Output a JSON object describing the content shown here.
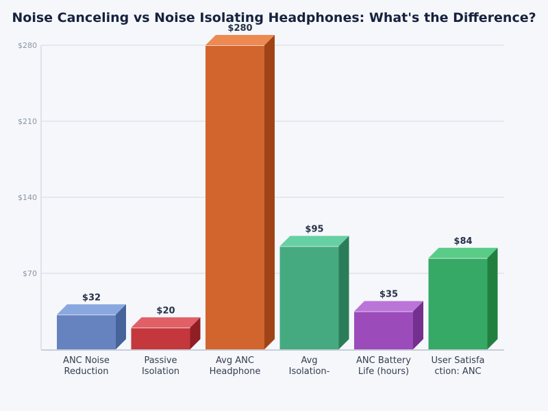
{
  "chart_data": {
    "type": "bar",
    "title": "Noise Canceling vs Noise Isolating Headphones: What's the Difference?",
    "categories": [
      [
        "ANC Noise",
        "Reduction"
      ],
      [
        "Passive",
        "Isolation"
      ],
      [
        "Avg ANC",
        "Headphone"
      ],
      [
        "Avg",
        "Isolation-"
      ],
      [
        "ANC Battery",
        "Life (hours)"
      ],
      [
        "User Satisfa",
        "ction: ANC"
      ]
    ],
    "values": [
      32,
      20,
      280,
      95,
      35,
      84
    ],
    "value_labels": [
      "$32",
      "$20",
      "$280",
      "$95",
      "$35",
      "$84"
    ],
    "ylim": [
      0,
      280
    ],
    "yticks": [
      70,
      140,
      210,
      280
    ],
    "ytick_labels": [
      "$70",
      "$140",
      "$210",
      "$280"
    ],
    "grid": true,
    "style": "3d-bar",
    "colors": [
      {
        "front": "#6683c0",
        "top": "#8aa8e0",
        "side": "#46639a"
      },
      {
        "front": "#c4373d",
        "top": "#e06066",
        "side": "#8f1f24"
      },
      {
        "front": "#d2652d",
        "top": "#ec8a52",
        "side": "#a04418"
      },
      {
        "front": "#45aa80",
        "top": "#66d0a2",
        "side": "#2a7d58"
      },
      {
        "front": "#9b4bba",
        "top": "#bb74d8",
        "side": "#74308e"
      },
      {
        "front": "#36a967",
        "top": "#5acc88",
        "side": "#22803f"
      }
    ]
  }
}
